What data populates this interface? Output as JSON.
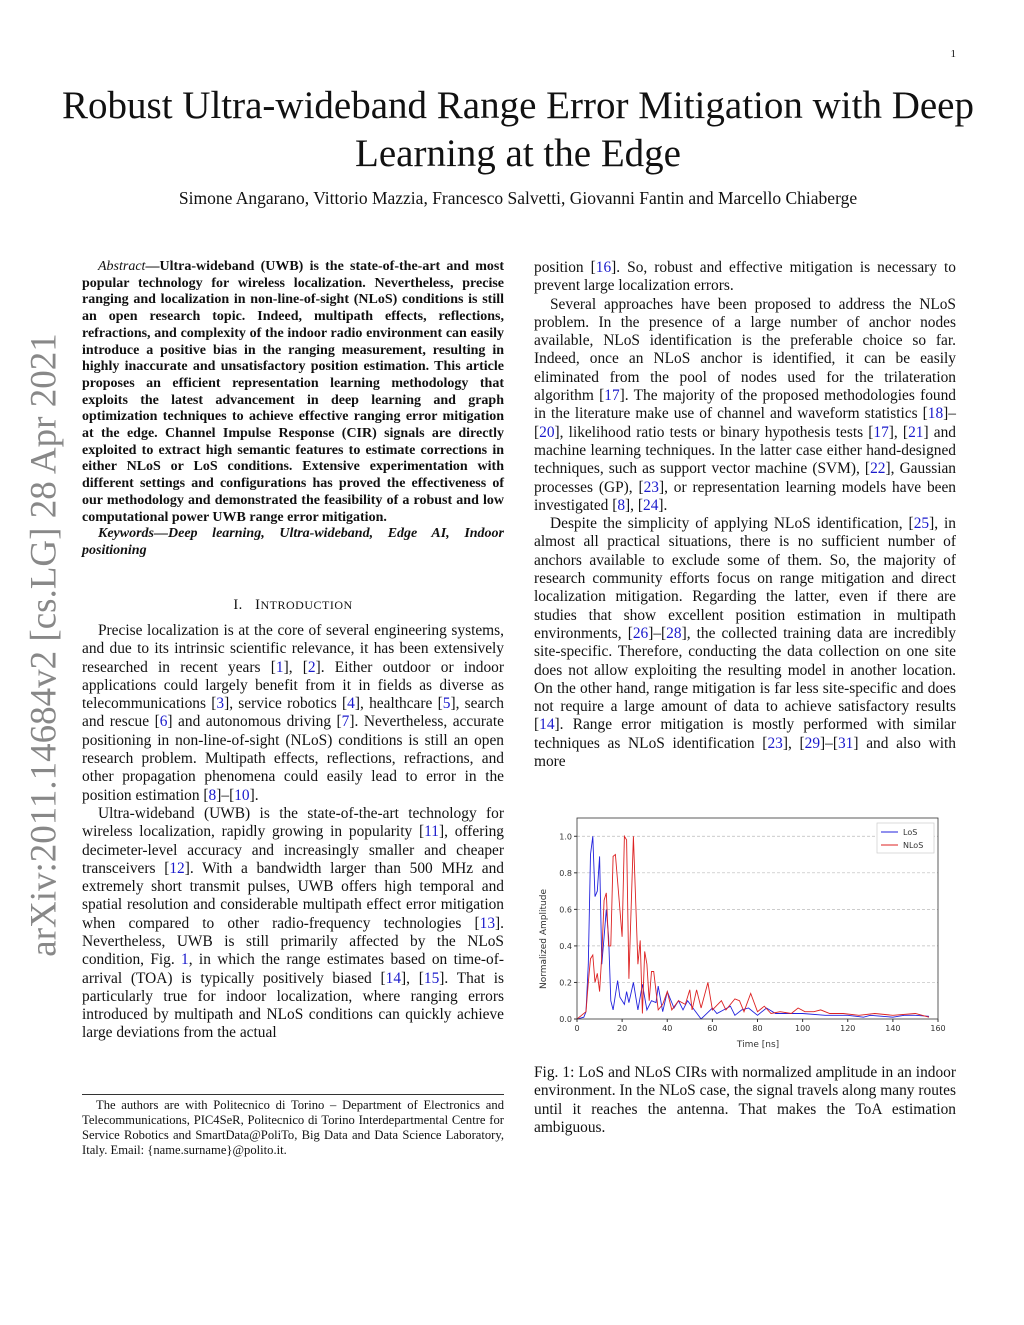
{
  "page_number": "1",
  "title": "Robust Ultra-wideband Range Error Mitigation with Deep Learning at the Edge",
  "authors": "Simone Angarano, Vittorio Mazzia, Francesco Salvetti, Giovanni Fantin and Marcello Chiaberge",
  "arxiv_id": "arXiv:2011.14684v2  [cs.LG]  28 Apr 2021",
  "abstract": {
    "label": "Abstract",
    "text": "—Ultra-wideband (UWB) is the state-of-the-art and most popular technology for wireless localization. Nevertheless, precise ranging and localization in non-line-of-sight (NLoS) conditions is still an open research topic. Indeed, multipath effects, reflections, refractions, and complexity of the indoor radio environment can easily introduce a positive bias in the ranging measurement, resulting in highly inaccurate and unsatisfactory position estimation. This article proposes an efficient representation learning methodology that exploits the latest advancement in deep learning and graph optimization techniques to achieve effective ranging error mitigation at the edge. Channel Impulse Response (CIR) signals are directly exploited to extract high semantic features to estimate corrections in either NLoS or LoS conditions. Extensive experimentation with different settings and configurations has proved the effectiveness of our methodology and demonstrated the feasibility of a robust and low computational power UWB range error mitigation."
  },
  "keywords": {
    "label": "Keywords",
    "text": "—Deep learning, Ultra-wideband, Edge AI, Indoor positioning"
  },
  "section1": {
    "numeral": "I.",
    "first": "I",
    "rest": "NTRODUCTION"
  },
  "left_paragraphs": [
    "Precise localization is at the core of several engineering systems, and due to its intrinsic scientific relevance, it has been extensively researched in recent years [1], [2]. Either outdoor or indoor applications could largely benefit from it in fields as diverse as telecommunications [3], service robotics [4], healthcare [5], search and rescue [6] and autonomous driving [7]. Nevertheless, accurate positioning in non-line-of-sight (NLoS) conditions is still an open research problem. Multipath effects, reflections, refractions, and other propagation phenomena could easily lead to error in the position estimation [8]–[10].",
    "Ultra-wideband (UWB) is the state-of-the-art technology for wireless localization, rapidly growing in popularity [11], offering decimeter-level accuracy and increasingly smaller and cheaper transceivers [12]. With a bandwidth larger than 500 MHz and extremely short transmit pulses, UWB offers high temporal and spatial resolution and considerable multipath effect error mitigation when compared to other radio-frequency technologies [13]. Nevertheless, UWB is still primarily affected by the NLoS condition, Fig. 1, in which the range estimates based on time-of-arrival (TOA) is typically positively biased [14], [15]. That is particularly true for indoor localization, where ranging errors introduced by multipath and NLoS conditions can quickly achieve large deviations from the actual"
  ],
  "footnote": "The authors are with Politecnico di Torino – Department of Electronics and Telecommunications, PIC4SeR, Politecnico di Torino Interdepartmental Centre for Service Robotics and SmartData@PoliTo, Big Data and Data Science Laboratory, Italy. Email: {name.surname}@polito.it.",
  "right_paragraphs": [
    "position [16]. So, robust and effective mitigation is necessary to prevent large localization errors.",
    "Several approaches have been proposed to address the NLoS problem. In the presence of a large number of anchor nodes available, NLoS identification is the preferable choice so far. Indeed, once an NLoS anchor is identified, it can be easily eliminated from the pool of nodes used for the trilateration algorithm [17]. The majority of the proposed methodologies found in the literature make use of channel and waveform statistics [18]–[20], likelihood ratio tests or binary hypothesis tests [17], [21] and machine learning techniques. In the latter case either hand-designed techniques, such as support vector machine (SVM), [22], Gaussian processes (GP), [23], or representation learning models have been investigated [8], [24].",
    "Despite the simplicity of applying NLoS identification, [25], in almost all practical situations, there is no sufficient number of anchors available to exclude some of them. So, the majority of research community efforts focus on range mitigation and direct localization mitigation. Regarding the latter, even if there are studies that show excellent position estimation in multipath environments, [26]–[28], the collected training data are incredibly site-specific. Therefore, conducting the data collection on one site does not allow exploiting the resulting model in another location. On the other hand, range mitigation is far less site-specific and does not require a large amount of data to achieve satisfactory results [14]. Range error mitigation is mostly performed with similar techniques as NLoS identification [23], [29]–[31] and also with more"
  ],
  "figure_caption": "Fig. 1: LoS and NLoS CIRs with normalized amplitude in an indoor environment. In the NLoS case, the signal travels along many routes until it reaches the antenna. That makes the ToA estimation ambiguous.",
  "colors": {
    "citation": "#1a1acc",
    "los": "#2222dd",
    "nlos": "#dd2222"
  },
  "chart_data": {
    "type": "line",
    "xlabel": "Time [ns]",
    "ylabel": "Normalized Amplitude",
    "xlim": [
      0,
      160
    ],
    "ylim": [
      0,
      1.1
    ],
    "xticks": [
      0,
      20,
      40,
      60,
      80,
      100,
      120,
      140,
      160
    ],
    "yticks": [
      "0.0",
      "0.2",
      "0.4",
      "0.6",
      "0.8",
      "1.0"
    ],
    "grid": "horizontal dashed",
    "legend_position": "top-right",
    "series": [
      {
        "name": "LoS",
        "color": "#2222dd",
        "x": [
          0,
          3,
          4,
          5,
          6,
          7,
          8,
          9,
          10,
          11,
          12,
          13,
          14,
          15,
          16,
          18,
          19,
          21,
          22,
          23,
          25,
          27,
          29,
          31,
          33,
          35,
          36,
          38,
          40,
          43,
          45,
          47,
          49,
          52,
          55,
          60,
          62,
          65,
          68,
          70,
          73,
          76,
          80,
          84,
          88,
          95,
          100,
          110,
          120,
          127,
          130,
          140,
          145,
          150,
          156
        ],
        "y": [
          0,
          0.01,
          0.04,
          0.3,
          0.9,
          1.0,
          0.67,
          0.7,
          0.89,
          0.3,
          0.45,
          0.6,
          0.45,
          0.1,
          0.05,
          0.21,
          0.12,
          0.08,
          0.15,
          0.09,
          0.2,
          0.05,
          0.19,
          0.05,
          0.1,
          0.09,
          0.18,
          0.04,
          0.15,
          0.06,
          0.1,
          0.05,
          0.1,
          0.05,
          0.0,
          0.06,
          0.03,
          0.05,
          0.07,
          0.02,
          0.05,
          0.06,
          0.02,
          0.06,
          0.03,
          0.03,
          0.03,
          0.02,
          0.02,
          0.01,
          0.02,
          0.01,
          0.02,
          0.02,
          0.015
        ]
      },
      {
        "name": "NLoS",
        "color": "#dd2222",
        "x": [
          0,
          4,
          5,
          6,
          7,
          8,
          9,
          10,
          11,
          12,
          13,
          14,
          15,
          16,
          17,
          19,
          20,
          21,
          22,
          23,
          25,
          27,
          28,
          29,
          30,
          31,
          32,
          33,
          34,
          36,
          38,
          40,
          42,
          45,
          48,
          50,
          51,
          53,
          55,
          58,
          60,
          64,
          66,
          70,
          72,
          74,
          77,
          80,
          83,
          86,
          90,
          95,
          98,
          101,
          105,
          108,
          112,
          118,
          125,
          132,
          140,
          150,
          156
        ],
        "y": [
          0,
          0.04,
          0.2,
          0.33,
          0.35,
          0.2,
          0.25,
          0.15,
          0.35,
          0.65,
          0.69,
          0.4,
          0.4,
          0.89,
          0.9,
          0.6,
          0.45,
          1.0,
          0.98,
          0.22,
          1.0,
          0.3,
          0.43,
          0.03,
          0.37,
          0.3,
          0.1,
          0.26,
          0.26,
          0.05,
          0.08,
          0.15,
          0.05,
          0.1,
          0.08,
          0.16,
          0.05,
          0.16,
          0.06,
          0.2,
          0.05,
          0.1,
          0.05,
          0.11,
          0.1,
          0.04,
          0.14,
          0.04,
          0.07,
          0.03,
          0.04,
          0.03,
          0.06,
          0.04,
          0.04,
          0.05,
          0.03,
          0.03,
          0.02,
          0.03,
          0.02,
          0.03,
          0.01
        ]
      }
    ]
  }
}
